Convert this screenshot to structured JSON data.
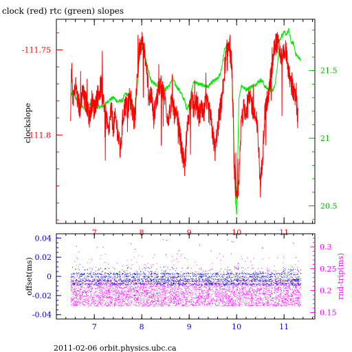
{
  "title": "clock (red) rtc (green) slopes",
  "footer": "2011-02-06  orbit.physics.ubc.ca",
  "colors": {
    "red": "#ff0000",
    "green": "#00e600",
    "blue": "#0000dd",
    "magenta": "#ff00ff",
    "axis": "#000000"
  },
  "chart_data": [
    {
      "type": "line",
      "title": "clock (red) rtc (green) slopes",
      "xlim": [
        6.2,
        11.65
      ],
      "x_ticks": [
        7,
        8,
        9,
        10,
        11
      ],
      "left_axis": {
        "label": "clockslope",
        "ylim": [
          -111.852,
          -111.732
        ],
        "ticks": [
          -111.75,
          -111.8
        ],
        "tick_labels": [
          "-111.75",
          "-111.8"
        ]
      },
      "right_axis": {
        "label": "",
        "ylim": [
          20.37,
          21.88
        ],
        "ticks": [
          21.5,
          21,
          20.5
        ],
        "tick_labels": [
          "21.5",
          "21",
          "20.5"
        ]
      },
      "series": [
        {
          "color": "red",
          "axis": "left",
          "x": [
            6.5,
            6.52,
            6.55,
            6.6,
            6.65,
            6.7,
            6.75,
            6.8,
            6.85,
            6.9,
            6.95,
            7.0,
            7.05,
            7.1,
            7.15,
            7.2,
            7.25,
            7.3,
            7.35,
            7.4,
            7.45,
            7.5,
            7.55,
            7.6,
            7.65,
            7.7,
            7.75,
            7.8,
            7.85,
            7.9,
            7.95,
            8.0,
            8.05,
            8.1,
            8.15,
            8.2,
            8.25,
            8.3,
            8.35,
            8.4,
            8.45,
            8.5,
            8.55,
            8.6,
            8.65,
            8.7,
            8.75,
            8.8,
            8.85,
            8.9,
            8.95,
            9.0,
            9.05,
            9.1,
            9.15,
            9.2,
            9.25,
            9.3,
            9.35,
            9.4,
            9.45,
            9.5,
            9.55,
            9.6,
            9.65,
            9.7,
            9.75,
            9.8,
            9.85,
            9.9,
            9.95,
            10.0,
            10.05,
            10.1,
            10.15,
            10.2,
            10.25,
            10.3,
            10.35,
            10.4,
            10.45,
            10.5,
            10.55,
            10.6,
            10.65,
            10.7,
            10.75,
            10.8,
            10.85,
            10.9,
            10.95,
            11.0,
            11.05,
            11.1,
            11.15,
            11.2,
            11.25,
            11.3
          ],
          "y": [
            -111.79,
            -111.76,
            -111.78,
            -111.77,
            -111.78,
            -111.785,
            -111.775,
            -111.78,
            -111.782,
            -111.79,
            -111.78,
            -111.785,
            -111.778,
            -111.775,
            -111.77,
            -111.78,
            -111.79,
            -111.8,
            -111.785,
            -111.795,
            -111.79,
            -111.8,
            -111.81,
            -111.79,
            -111.782,
            -111.785,
            -111.778,
            -111.785,
            -111.79,
            -111.77,
            -111.75,
            -111.745,
            -111.75,
            -111.76,
            -111.78,
            -111.775,
            -111.79,
            -111.78,
            -111.775,
            -111.77,
            -111.775,
            -111.78,
            -111.79,
            -111.785,
            -111.78,
            -111.79,
            -111.79,
            -111.8,
            -111.81,
            -111.82,
            -111.8,
            -111.785,
            -111.78,
            -111.785,
            -111.78,
            -111.79,
            -111.785,
            -111.79,
            -111.78,
            -111.785,
            -111.79,
            -111.8,
            -111.81,
            -111.795,
            -111.785,
            -111.775,
            -111.76,
            -111.75,
            -111.748,
            -111.76,
            -111.82,
            -111.84,
            -111.83,
            -111.79,
            -111.785,
            -111.785,
            -111.78,
            -111.78,
            -111.785,
            -111.79,
            -111.8,
            -111.83,
            -111.81,
            -111.785,
            -111.78,
            -111.77,
            -111.76,
            -111.748,
            -111.745,
            -111.75,
            -111.755,
            -111.75,
            -111.75,
            -111.765,
            -111.77,
            -111.775,
            -111.78,
            -111.79
          ]
        },
        {
          "color": "green",
          "axis": "right",
          "x": [
            6.5,
            6.55,
            6.6,
            6.7,
            6.8,
            6.9,
            7.0,
            7.1,
            7.2,
            7.3,
            7.4,
            7.5,
            7.6,
            7.65,
            7.7,
            7.75,
            7.8,
            7.85,
            7.9,
            7.95,
            8.0,
            8.05,
            8.1,
            8.2,
            8.3,
            8.4,
            8.5,
            8.6,
            8.65,
            8.7,
            8.8,
            8.9,
            8.95,
            9.0,
            9.05,
            9.1,
            9.2,
            9.3,
            9.4,
            9.5,
            9.6,
            9.65,
            9.7,
            9.75,
            9.8,
            9.85,
            9.9,
            9.93,
            9.95,
            9.98,
            10.0,
            10.05,
            10.1,
            10.2,
            10.3,
            10.4,
            10.5,
            10.55,
            10.6,
            10.65,
            10.7,
            10.75,
            10.8,
            10.85,
            10.9,
            10.95,
            11.0,
            11.05,
            11.1,
            11.15,
            11.2,
            11.25,
            11.3,
            11.35
          ],
          "y": [
            21.3,
            21.35,
            21.3,
            21.25,
            21.22,
            21.25,
            21.23,
            21.23,
            21.24,
            21.28,
            21.3,
            21.27,
            21.28,
            21.33,
            21.32,
            21.32,
            21.27,
            21.2,
            21.34,
            21.6,
            21.66,
            21.64,
            21.55,
            21.42,
            21.4,
            21.38,
            21.36,
            21.4,
            21.45,
            21.4,
            21.35,
            21.28,
            21.22,
            21.25,
            21.35,
            21.42,
            21.4,
            21.39,
            21.38,
            21.42,
            21.44,
            21.47,
            21.55,
            21.66,
            21.69,
            21.66,
            21.5,
            21.2,
            20.8,
            20.5,
            20.45,
            21.3,
            21.39,
            21.36,
            21.38,
            21.4,
            21.43,
            21.42,
            21.38,
            21.37,
            21.35,
            21.35,
            21.38,
            21.5,
            21.72,
            21.76,
            21.78,
            21.77,
            21.8,
            21.71,
            21.7,
            21.62,
            21.6,
            21.58
          ]
        }
      ]
    },
    {
      "type": "scatter",
      "xlim": [
        6.2,
        11.65
      ],
      "x_ticks": [
        7,
        8,
        9,
        10,
        11
      ],
      "left_axis": {
        "label": "offset(ms)",
        "ylim": [
          -0.0445,
          0.0445
        ],
        "ticks": [
          0.04,
          0.02,
          0,
          -0.02,
          -0.04
        ],
        "tick_labels": [
          "0.04",
          "0.02",
          "0",
          "-0.02",
          "-0.04"
        ]
      },
      "right_axis": {
        "label": "rnd-trip(ms)",
        "ylim": [
          0.135,
          0.33
        ],
        "ticks": [
          0.3,
          0.25,
          0.2,
          0.15
        ],
        "tick_labels": [
          "0.3",
          "0.25",
          "0.2",
          "0.15"
        ]
      },
      "series": [
        {
          "color": "blue",
          "axis": "left",
          "x_range": [
            6.5,
            11.35
          ],
          "core_band": [
            -0.009,
            0.004
          ],
          "outlier_max": 0.04
        },
        {
          "color": "magenta",
          "axis": "right",
          "x_range": [
            6.5,
            11.35
          ],
          "core_band": [
            0.165,
            0.225
          ]
        }
      ]
    }
  ]
}
